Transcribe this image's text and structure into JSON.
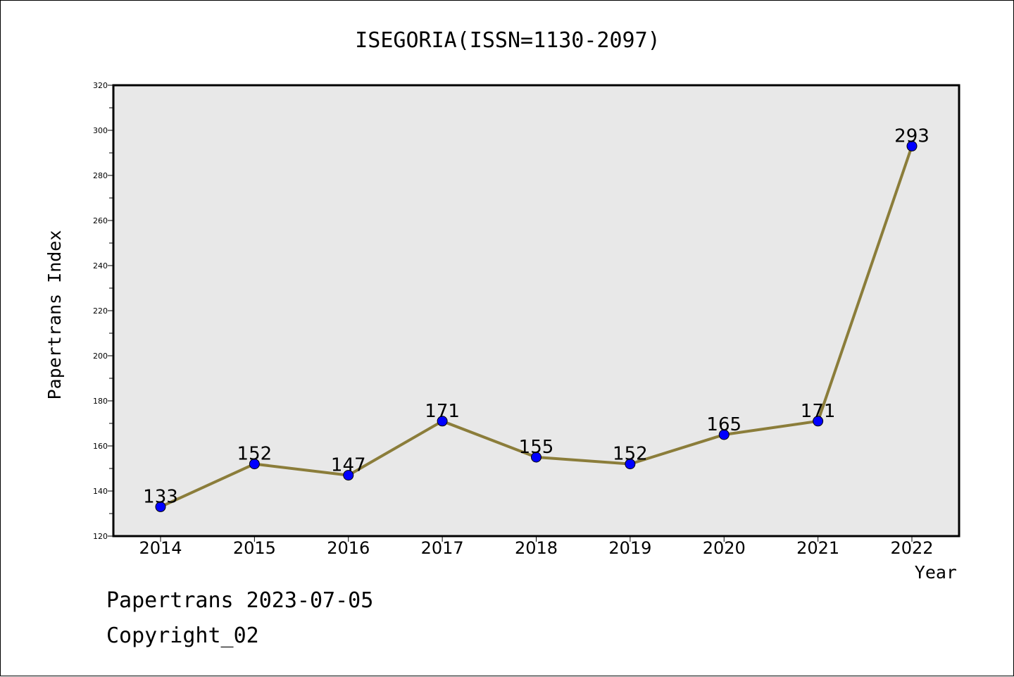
{
  "chart_data": {
    "type": "line",
    "title": "ISEGORIA(ISSN=1130-2097)",
    "xlabel": "Year",
    "ylabel": "Papertrans Index",
    "categories": [
      "2014",
      "2015",
      "2016",
      "2017",
      "2018",
      "2019",
      "2020",
      "2021",
      "2022"
    ],
    "series": [
      {
        "values": [
          133,
          152,
          147,
          171,
          155,
          152,
          165,
          171,
          293
        ]
      }
    ],
    "data_labels": [
      "133",
      "152",
      "147",
      "171",
      "155",
      "152",
      "165",
      "171",
      "293"
    ],
    "ylim": [
      120,
      320
    ],
    "yticks": [
      120,
      140,
      160,
      180,
      200,
      220,
      240,
      260,
      280,
      300,
      320
    ],
    "ytick_labels": [
      "120",
      "140",
      "160",
      "180",
      "200",
      "220",
      "240",
      "260",
      "280",
      "300",
      "320"
    ],
    "grid": false,
    "colors": {
      "line": "#8B7D3A",
      "marker": "#0000FF",
      "plot_background": "#E8E8E8"
    }
  },
  "footer": {
    "line1": "Papertrans 2023-07-05",
    "line2": "Copyright_02"
  }
}
